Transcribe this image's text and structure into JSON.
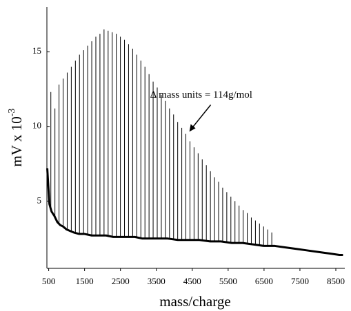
{
  "chart_data": {
    "type": "spectrum",
    "xlabel": "mass/charge",
    "ylabel": "mV x 10",
    "ylabel_exponent": "-3",
    "annotation": {
      "text": "Δ mass units = 114g/mol",
      "x": 4400,
      "y": 9.6
    },
    "xlim": [
      450,
      8750
    ],
    "ylim": [
      0.5,
      18
    ],
    "xticks": [
      500,
      1500,
      2500,
      3500,
      4500,
      5500,
      6500,
      7500,
      8500
    ],
    "yticks": [
      5,
      10,
      15
    ],
    "series": [
      {
        "style": "sticks",
        "color": "#000000",
        "x": [
          560,
          674,
          788,
          902,
          1016,
          1130,
          1244,
          1358,
          1472,
          1586,
          1700,
          1814,
          1928,
          2042,
          2156,
          2270,
          2384,
          2498,
          2612,
          2726,
          2840,
          2954,
          3068,
          3182,
          3296,
          3410,
          3524,
          3638,
          3752,
          3866,
          3980,
          4094,
          4208,
          4322,
          4436,
          4550,
          4664,
          4778,
          4892,
          5006,
          5120,
          5234,
          5348,
          5462,
          5576,
          5690,
          5804,
          5918,
          6032,
          6146,
          6260,
          6374,
          6488,
          6602,
          6716
        ],
        "values": [
          12.3,
          11.2,
          12.8,
          13.2,
          13.6,
          14.0,
          14.4,
          14.8,
          15.1,
          15.4,
          15.7,
          16.0,
          16.2,
          16.5,
          16.4,
          16.3,
          16.2,
          16.0,
          15.8,
          15.5,
          15.2,
          14.8,
          14.4,
          14.0,
          13.5,
          13.0,
          12.6,
          12.1,
          11.7,
          11.2,
          10.8,
          10.3,
          9.9,
          9.5,
          9.0,
          8.6,
          8.2,
          7.8,
          7.4,
          7.0,
          6.6,
          6.3,
          5.9,
          5.6,
          5.3,
          5.0,
          4.7,
          4.4,
          4.2,
          3.9,
          3.7,
          3.5,
          3.3,
          3.1,
          2.9
        ]
      },
      {
        "style": "line",
        "color": "#000000",
        "x": [
          460,
          520,
          580,
          660,
          740,
          820,
          900,
          1000,
          1100,
          1200,
          1350,
          1500,
          1700,
          1900,
          2100,
          2300,
          2500,
          2700,
          2900,
          3100,
          3300,
          3500,
          3800,
          4100,
          4400,
          4700,
          5000,
          5300,
          5600,
          5900,
          6200,
          6500,
          6800,
          7100,
          7400,
          7700,
          8000,
          8300,
          8600,
          8700
        ],
        "values": [
          7.2,
          4.8,
          4.3,
          4.0,
          3.6,
          3.4,
          3.3,
          3.1,
          3.0,
          2.9,
          2.8,
          2.8,
          2.7,
          2.7,
          2.7,
          2.6,
          2.6,
          2.6,
          2.6,
          2.5,
          2.5,
          2.5,
          2.5,
          2.4,
          2.4,
          2.4,
          2.3,
          2.3,
          2.2,
          2.2,
          2.1,
          2.0,
          2.0,
          1.9,
          1.8,
          1.7,
          1.6,
          1.5,
          1.4,
          1.4
        ]
      }
    ]
  }
}
